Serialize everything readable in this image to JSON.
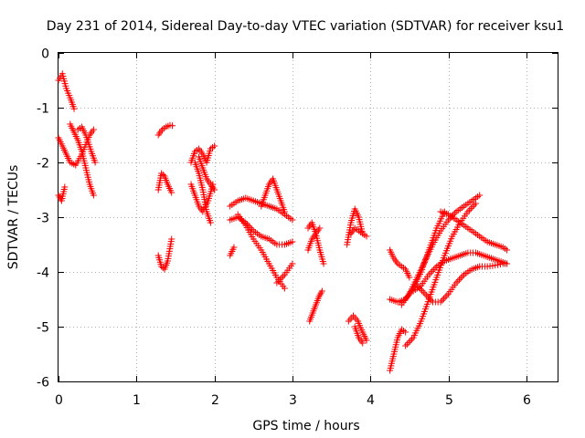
{
  "chart_data": {
    "type": "scatter",
    "title": "Day 231 of 2014, Sidereal Day-to-day VTEC variation (SDTVAR) for receiver ksu1",
    "xlabel": "GPS time / hours",
    "ylabel": "SDTVAR / TECUs",
    "xlim": [
      0,
      6.4
    ],
    "ylim": [
      -6,
      0
    ],
    "xticks": [
      0,
      1,
      2,
      3,
      4,
      5,
      6
    ],
    "xtick_labels": [
      "0",
      "1",
      "2",
      "3",
      "4",
      "5",
      "6"
    ],
    "yticks": [
      0,
      -1,
      -2,
      -3,
      -4,
      -5,
      -6
    ],
    "ytick_labels": [
      "0",
      "-1",
      "-2",
      "-3",
      "-4",
      "-5",
      "-6"
    ],
    "grid": true,
    "marker": "plus",
    "color": "#ff0000",
    "tracks": [
      {
        "x": [
          0.0,
          0.05,
          0.1,
          0.15,
          0.2
        ],
        "y": [
          -0.5,
          -0.38,
          -0.65,
          -0.82,
          -1.02
        ]
      },
      {
        "x": [
          0.0,
          0.05,
          0.1,
          0.15,
          0.22,
          0.3,
          0.4,
          0.45
        ],
        "y": [
          -1.55,
          -1.7,
          -1.85,
          -2.0,
          -2.05,
          -1.85,
          -1.5,
          -1.4
        ]
      },
      {
        "x": [
          0.0,
          0.04,
          0.08
        ],
        "y": [
          -2.6,
          -2.7,
          -2.45
        ]
      },
      {
        "x": [
          0.15,
          0.2,
          0.25,
          0.3,
          0.35,
          0.4,
          0.45
        ],
        "y": [
          -1.3,
          -1.45,
          -1.6,
          -1.8,
          -2.1,
          -2.4,
          -2.6
        ]
      },
      {
        "x": [
          0.25,
          0.3,
          0.35,
          0.42,
          0.47
        ],
        "y": [
          -1.4,
          -1.35,
          -1.5,
          -1.8,
          -2.0
        ]
      },
      {
        "x": [
          1.28,
          1.33,
          1.38,
          1.43,
          1.46
        ],
        "y": [
          -1.5,
          -1.4,
          -1.35,
          -1.32,
          -1.33
        ]
      },
      {
        "x": [
          1.28,
          1.32,
          1.36,
          1.4,
          1.45
        ],
        "y": [
          -2.5,
          -2.2,
          -2.25,
          -2.4,
          -2.55
        ]
      },
      {
        "x": [
          1.28,
          1.32,
          1.36,
          1.4,
          1.45
        ],
        "y": [
          -3.7,
          -3.9,
          -3.95,
          -3.8,
          -3.4
        ]
      },
      {
        "x": [
          1.7,
          1.75,
          1.8,
          1.85,
          1.9,
          1.95,
          2.0
        ],
        "y": [
          -2.0,
          -1.8,
          -1.75,
          -1.85,
          -2.0,
          -1.75,
          -1.7
        ]
      },
      {
        "x": [
          1.7,
          1.75,
          1.8,
          1.85,
          1.92,
          1.98
        ],
        "y": [
          -2.4,
          -2.6,
          -2.8,
          -2.9,
          -2.7,
          -2.4
        ]
      },
      {
        "x": [
          1.75,
          1.8,
          1.85,
          1.9,
          1.95
        ],
        "y": [
          -2.0,
          -2.2,
          -2.5,
          -2.9,
          -3.1
        ]
      },
      {
        "x": [
          1.8,
          1.85,
          1.9,
          1.95,
          2.0
        ],
        "y": [
          -1.9,
          -2.1,
          -2.3,
          -2.4,
          -2.5
        ]
      },
      {
        "x": [
          2.2,
          2.3,
          2.4,
          2.5,
          2.6,
          2.7,
          2.8,
          2.9,
          3.0
        ],
        "y": [
          -2.8,
          -2.7,
          -2.65,
          -2.7,
          -2.75,
          -2.8,
          -2.85,
          -2.95,
          -3.05
        ]
      },
      {
        "x": [
          2.2,
          2.3,
          2.4,
          2.5,
          2.6,
          2.7,
          2.8,
          2.9,
          3.0
        ],
        "y": [
          -3.05,
          -3.0,
          -3.1,
          -3.25,
          -3.35,
          -3.4,
          -3.5,
          -3.5,
          -3.45
        ]
      },
      {
        "x": [
          2.3,
          2.4,
          2.5,
          2.6,
          2.7,
          2.8,
          2.9
        ],
        "y": [
          -2.95,
          -3.15,
          -3.4,
          -3.6,
          -3.85,
          -4.1,
          -4.3
        ]
      },
      {
        "x": [
          2.6,
          2.65,
          2.7,
          2.75,
          2.8,
          2.85,
          2.9
        ],
        "y": [
          -2.8,
          -2.6,
          -2.4,
          -2.3,
          -2.5,
          -2.7,
          -2.9
        ]
      },
      {
        "x": [
          2.2,
          2.25
        ],
        "y": [
          -3.7,
          -3.55
        ]
      },
      {
        "x": [
          2.8,
          2.9,
          3.0
        ],
        "y": [
          -4.2,
          -4.05,
          -3.85
        ]
      },
      {
        "x": [
          3.2,
          3.25,
          3.3,
          3.35,
          3.4
        ],
        "y": [
          -3.2,
          -3.1,
          -3.3,
          -3.6,
          -3.85
        ]
      },
      {
        "x": [
          3.2,
          3.25,
          3.3,
          3.35
        ],
        "y": [
          -3.6,
          -3.4,
          -3.3,
          -3.2
        ]
      },
      {
        "x": [
          3.22,
          3.26,
          3.3,
          3.34,
          3.38
        ],
        "y": [
          -4.9,
          -4.75,
          -4.6,
          -4.45,
          -4.35
        ]
      },
      {
        "x": [
          3.7,
          3.75,
          3.8,
          3.85,
          3.9
        ],
        "y": [
          -3.5,
          -3.1,
          -2.85,
          -3.0,
          -3.3
        ]
      },
      {
        "x": [
          3.75,
          3.8,
          3.85,
          3.9,
          3.95
        ],
        "y": [
          -3.3,
          -3.2,
          -3.25,
          -3.3,
          -3.35
        ]
      },
      {
        "x": [
          3.72,
          3.78,
          3.84,
          3.9,
          3.95
        ],
        "y": [
          -4.9,
          -4.8,
          -4.9,
          -5.1,
          -5.25
        ]
      },
      {
        "x": [
          3.8,
          3.85,
          3.9
        ],
        "y": [
          -5.0,
          -5.2,
          -5.3
        ]
      },
      {
        "x": [
          4.25,
          4.3,
          4.35,
          4.4,
          4.45,
          4.5
        ],
        "y": [
          -3.6,
          -3.75,
          -3.85,
          -3.9,
          -3.95,
          -4.1
        ]
      },
      {
        "x": [
          4.25,
          4.35,
          4.45,
          4.55,
          4.65,
          4.75,
          4.85,
          4.95
        ],
        "y": [
          -4.5,
          -4.55,
          -4.5,
          -4.3,
          -4.0,
          -3.6,
          -3.2,
          -2.9
        ]
      },
      {
        "x": [
          4.25,
          4.3,
          4.35,
          4.4,
          4.45
        ],
        "y": [
          -5.8,
          -5.5,
          -5.2,
          -5.05,
          -5.1
        ]
      },
      {
        "x": [
          4.4,
          4.5,
          4.6,
          4.7,
          4.8,
          4.9,
          5.0,
          5.1,
          5.2,
          5.3,
          5.4
        ],
        "y": [
          -4.6,
          -4.4,
          -4.1,
          -3.8,
          -3.5,
          -3.25,
          -3.05,
          -2.9,
          -2.8,
          -2.7,
          -2.6
        ]
      },
      {
        "x": [
          4.45,
          4.55,
          4.65,
          4.75,
          4.85,
          4.95,
          5.05,
          5.15,
          5.25,
          5.35
        ],
        "y": [
          -5.35,
          -5.2,
          -4.9,
          -4.5,
          -4.1,
          -3.7,
          -3.35,
          -3.1,
          -2.9,
          -2.75
        ]
      },
      {
        "x": [
          4.55,
          4.65,
          4.75,
          4.85,
          4.95,
          5.05,
          5.15,
          5.25,
          5.35,
          5.45,
          5.55,
          5.65,
          5.75
        ],
        "y": [
          -4.35,
          -4.25,
          -4.05,
          -3.9,
          -3.8,
          -3.75,
          -3.7,
          -3.65,
          -3.65,
          -3.7,
          -3.75,
          -3.8,
          -3.85
        ]
      },
      {
        "x": [
          4.6,
          4.7,
          4.8,
          4.9,
          5.0,
          5.1,
          5.2,
          5.3,
          5.4,
          5.5,
          5.6,
          5.7,
          5.75
        ],
        "y": [
          -4.25,
          -4.4,
          -4.55,
          -4.55,
          -4.4,
          -4.2,
          -4.05,
          -3.95,
          -3.9,
          -3.9,
          -3.88,
          -3.85,
          -3.85
        ]
      },
      {
        "x": [
          4.9,
          5.0,
          5.1,
          5.2,
          5.3,
          5.4,
          5.5,
          5.6,
          5.7,
          5.75
        ],
        "y": [
          -2.9,
          -2.95,
          -3.05,
          -3.15,
          -3.25,
          -3.35,
          -3.45,
          -3.5,
          -3.55,
          -3.6
        ]
      }
    ]
  }
}
